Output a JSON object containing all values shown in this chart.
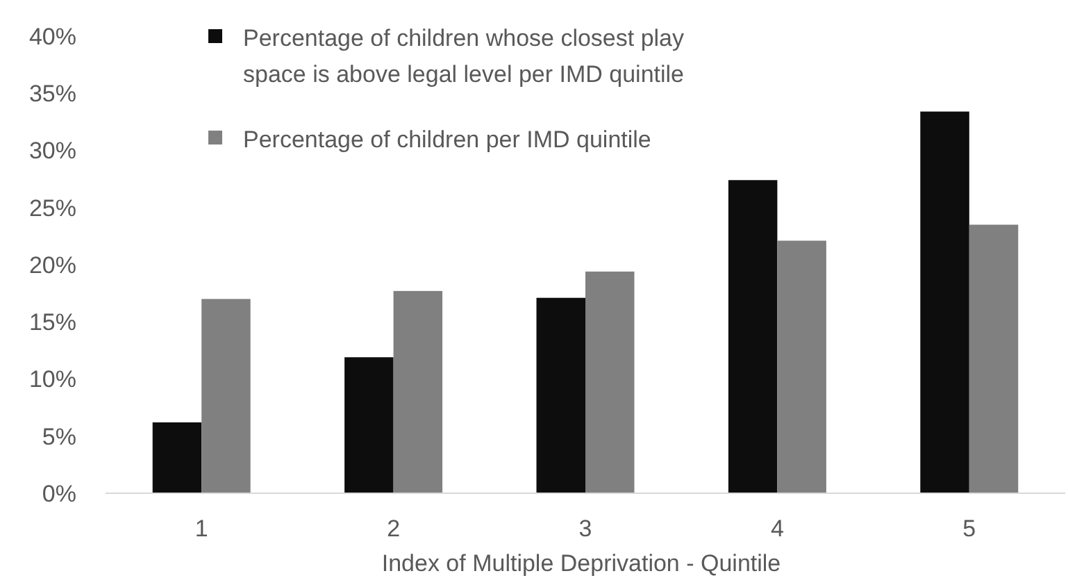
{
  "chart_data": {
    "type": "bar",
    "xlabel": "Index of Multiple Deprivation - Quintile",
    "categories": [
      "1",
      "2",
      "3",
      "4",
      "5"
    ],
    "series": [
      {
        "name": "Percentage of children whose closest play space is above legal level per IMD quintile",
        "color": "#0d0d0d",
        "values": [
          6.2,
          11.9,
          17.1,
          27.4,
          33.4
        ]
      },
      {
        "name": "Percentage of children per IMD quintile",
        "color": "#808080",
        "values": [
          17.0,
          17.7,
          19.4,
          22.1,
          23.5
        ]
      }
    ],
    "ylim": [
      0,
      40
    ],
    "yticks": [
      {
        "value": 0,
        "label": "0%"
      },
      {
        "value": 5,
        "label": "5%"
      },
      {
        "value": 10,
        "label": "10%"
      },
      {
        "value": 15,
        "label": "15%"
      },
      {
        "value": 20,
        "label": "20%"
      },
      {
        "value": 25,
        "label": "25%"
      },
      {
        "value": 30,
        "label": "30%"
      },
      {
        "value": 35,
        "label": "35%"
      },
      {
        "value": 40,
        "label": "40%"
      }
    ],
    "grid": false,
    "legend": "top"
  }
}
